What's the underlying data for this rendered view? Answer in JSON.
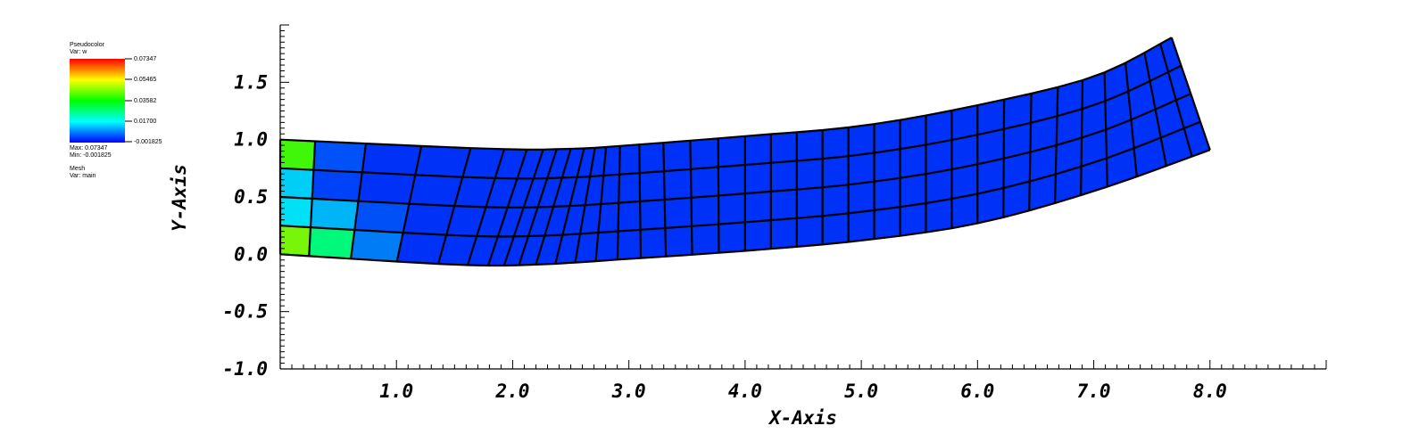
{
  "legend": {
    "plot_name": "Pseudocolor",
    "var_label": "Var: w",
    "scale_ticks": [
      "0.07347",
      "0.05465",
      "0.03582",
      "0.01700",
      "-0.001825"
    ],
    "max_label": "Max: 0.07347",
    "min_label": "Min: -0.001825",
    "mesh_name": "Mesh",
    "mesh_var_label": "Var: main",
    "colors": [
      "#ff0000",
      "#ffff00",
      "#00ff00",
      "#00ffff",
      "#0000ff"
    ]
  },
  "chart_data": {
    "type": "heatmap",
    "description_kind": "deformed 2D mesh colored by pseudocolor variable w",
    "xlabel": "X-Axis",
    "ylabel": "Y-Axis",
    "xlim": [
      0.0,
      9.0
    ],
    "ylim": [
      -1.0,
      2.0
    ],
    "x_ticks": [
      "1.0",
      "2.0",
      "3.0",
      "4.0",
      "5.0",
      "6.0",
      "7.0",
      "8.0"
    ],
    "x_tick_values": [
      1,
      2,
      3,
      4,
      5,
      6,
      7,
      8
    ],
    "y_ticks": [
      "1.5",
      "1.0",
      "0.5",
      "0.0",
      "-0.5",
      "-1.0"
    ],
    "y_tick_values": [
      1.5,
      1.0,
      0.5,
      0.0,
      -0.5,
      -1.0
    ],
    "mesh": {
      "columns": 36,
      "rows": 4,
      "bottom_edge": [
        [
          0.0,
          0.0
        ],
        [
          1.5,
          -0.09
        ],
        [
          2.2,
          -0.09
        ],
        [
          3.0,
          -0.04
        ],
        [
          4.0,
          0.03
        ],
        [
          5.0,
          0.12
        ],
        [
          6.0,
          0.27
        ],
        [
          7.0,
          0.55
        ],
        [
          8.0,
          0.91
        ]
      ],
      "top_edge": [
        [
          0.0,
          1.0
        ],
        [
          1.8,
          0.92
        ],
        [
          2.5,
          0.92
        ],
        [
          3.0,
          0.95
        ],
        [
          4.0,
          1.03
        ],
        [
          5.0,
          1.12
        ],
        [
          6.0,
          1.3
        ],
        [
          7.0,
          1.55
        ],
        [
          7.67,
          1.89
        ]
      ],
      "w_min": -0.001825,
      "w_max": 0.07347,
      "w_hotspots": [
        {
          "x": 0.0,
          "y": 1.0,
          "w": 0.07
        },
        {
          "x": 0.0,
          "y": 0.0,
          "w": 0.06
        },
        {
          "x": 0.5,
          "y": 0.15,
          "w": 0.02
        },
        {
          "x": 0.0,
          "y": 0.5,
          "w": 0.015
        }
      ]
    },
    "grid": false,
    "legend_placement": "top-left"
  }
}
